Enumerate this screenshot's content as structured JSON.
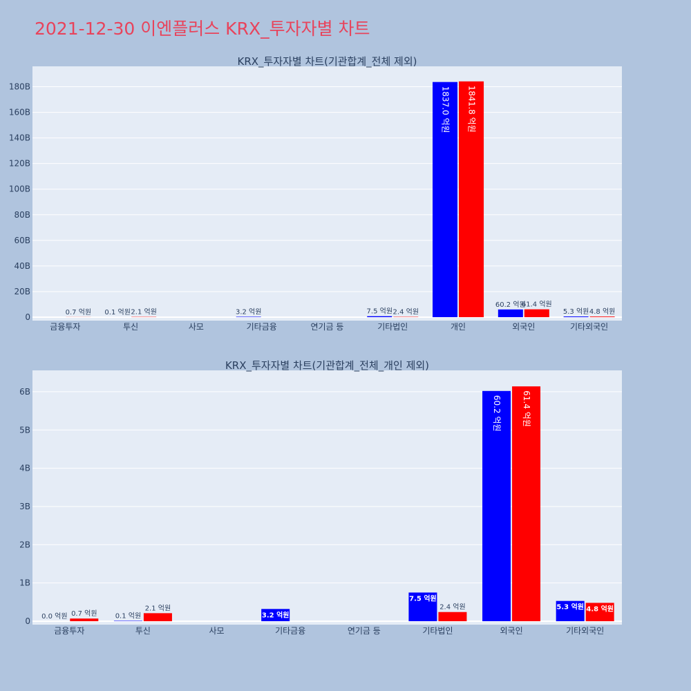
{
  "title": "2021-12-30 이엔플러스 KRX_투자자별 차트",
  "colors": {
    "buy": "#0000ff",
    "sell": "#ff0000",
    "plot_bg": "#e5ecf6",
    "page_bg": "#b0c4de",
    "title": "#e8435b"
  },
  "chart_data": [
    {
      "type": "bar",
      "title": "KRX_투자자별 차트(기관합계_전체 제외)",
      "categories": [
        "금융투자",
        "투신",
        "사모",
        "기타금융",
        "연기금 등",
        "기타법인",
        "개인",
        "외국인",
        "기타외국인"
      ],
      "ylim": [
        0,
        190
      ],
      "y_unit": "B",
      "yticks": [
        0,
        20,
        40,
        60,
        80,
        100,
        120,
        140,
        160,
        180
      ],
      "ytick_labels": [
        "0",
        "20B",
        "40B",
        "60B",
        "80B",
        "100B",
        "120B",
        "140B",
        "160B",
        "180B"
      ],
      "grid": true,
      "series": [
        {
          "values": [
            0.0,
            0.01,
            0.0,
            0.32,
            0.0,
            0.75,
            183.7,
            6.02,
            0.53
          ],
          "labels": [
            "",
            "0.1 억원",
            "",
            "3.2 억원",
            "",
            "7.5 억원",
            "1837.0 억원",
            "60.2 억원",
            "5.3 억원"
          ]
        },
        {
          "values": [
            0.07,
            0.21,
            0.0,
            0.0,
            0.0,
            0.24,
            184.18,
            6.14,
            0.48
          ],
          "labels": [
            "0.7 억원",
            "2.1 억원",
            "",
            "",
            "",
            "2.4 억원",
            "1841.8 억원",
            "61.4 억원",
            "4.8 억원"
          ]
        }
      ]
    },
    {
      "type": "bar",
      "title": "KRX_투자자별 차트(기관합계_전체_개인 제외)",
      "categories": [
        "금융투자",
        "투신",
        "사모",
        "기타금융",
        "연기금 등",
        "기타법인",
        "외국인",
        "기타외국인"
      ],
      "ylim": [
        0,
        6.45
      ],
      "y_unit": "B",
      "yticks": [
        0,
        1,
        2,
        3,
        4,
        5,
        6
      ],
      "ytick_labels": [
        "0",
        "1B",
        "2B",
        "3B",
        "4B",
        "5B",
        "6B"
      ],
      "grid": true,
      "series": [
        {
          "values": [
            0.0,
            0.01,
            0.0,
            0.32,
            0.0,
            0.75,
            6.02,
            0.53
          ],
          "labels": [
            "0.0 억원",
            "0.1 억원",
            "",
            "3.2 억원",
            "",
            "7.5 억원",
            "60.2 억원",
            "5.3 억원"
          ]
        },
        {
          "values": [
            0.07,
            0.21,
            0.0,
            0.0,
            0.0,
            0.24,
            6.14,
            0.48
          ],
          "labels": [
            "0.7 억원",
            "2.1 억원",
            "",
            "",
            "",
            "2.4 억원",
            "61.4 억원",
            "4.8 억원"
          ]
        }
      ]
    }
  ]
}
